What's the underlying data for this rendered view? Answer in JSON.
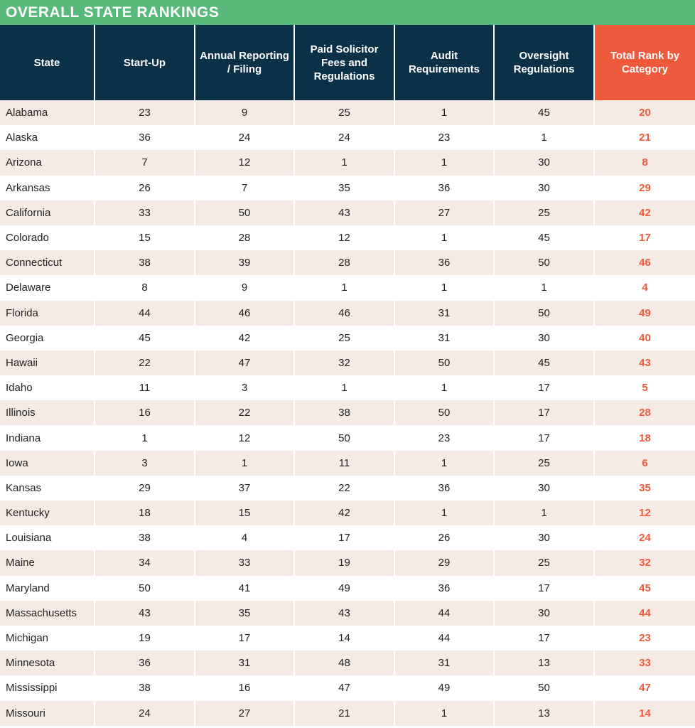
{
  "title": "OVERALL STATE RANKINGS",
  "colors": {
    "title_bar": "#58b97b",
    "header": "#0b3148",
    "total_header": "#ee5a3b",
    "total_text": "#ee5a3b",
    "row_shaded": "#f5ebe4",
    "row_plain": "#ffffff"
  },
  "table": {
    "headers": {
      "state": "State",
      "startup": "Start-Up",
      "annual": "Annual Reporting / Filing",
      "solicitor": "Paid Solicitor Fees and Regulations",
      "audit": "Audit Requirements",
      "oversight": "Oversight Regulations",
      "total": "Total Rank by Category"
    },
    "rows": [
      [
        "Alabama",
        "23",
        "9",
        "25",
        "1",
        "45",
        "20"
      ],
      [
        "Alaska",
        "36",
        "24",
        "24",
        "23",
        "1",
        "21"
      ],
      [
        "Arizona",
        "7",
        "12",
        "1",
        "1",
        "30",
        "8"
      ],
      [
        "Arkansas",
        "26",
        "7",
        "35",
        "36",
        "30",
        "29"
      ],
      [
        "California",
        "33",
        "50",
        "43",
        "27",
        "25",
        "42"
      ],
      [
        "Colorado",
        "15",
        "28",
        "12",
        "1",
        "45",
        "17"
      ],
      [
        "Connecticut",
        "38",
        "39",
        "28",
        "36",
        "50",
        "46"
      ],
      [
        "Delaware",
        "8",
        "9",
        "1",
        "1",
        "1",
        "4"
      ],
      [
        "Florida",
        "44",
        "46",
        "46",
        "31",
        "50",
        "49"
      ],
      [
        "Georgia",
        "45",
        "42",
        "25",
        "31",
        "30",
        "40"
      ],
      [
        "Hawaii",
        "22",
        "47",
        "32",
        "50",
        "45",
        "43"
      ],
      [
        "Idaho",
        "11",
        "3",
        "1",
        "1",
        "17",
        "5"
      ],
      [
        "Illinois",
        "16",
        "22",
        "38",
        "50",
        "17",
        "28"
      ],
      [
        "Indiana",
        "1",
        "12",
        "50",
        "23",
        "17",
        "18"
      ],
      [
        "Iowa",
        "3",
        "1",
        "11",
        "1",
        "25",
        "6"
      ],
      [
        "Kansas",
        "29",
        "37",
        "22",
        "36",
        "30",
        "35"
      ],
      [
        "Kentucky",
        "18",
        "15",
        "42",
        "1",
        "1",
        "12"
      ],
      [
        "Louisiana",
        "38",
        "4",
        "17",
        "26",
        "30",
        "24"
      ],
      [
        "Maine",
        "34",
        "33",
        "19",
        "29",
        "25",
        "32"
      ],
      [
        "Maryland",
        "50",
        "41",
        "49",
        "36",
        "17",
        "45"
      ],
      [
        "Massachusetts",
        "43",
        "35",
        "43",
        "44",
        "30",
        "44"
      ],
      [
        "Michigan",
        "19",
        "17",
        "14",
        "44",
        "17",
        "23"
      ],
      [
        "Minnesota",
        "36",
        "31",
        "48",
        "31",
        "13",
        "33"
      ],
      [
        "Mississippi",
        "38",
        "16",
        "47",
        "49",
        "50",
        "47"
      ],
      [
        "Missouri",
        "24",
        "27",
        "21",
        "1",
        "13",
        "14"
      ]
    ]
  }
}
